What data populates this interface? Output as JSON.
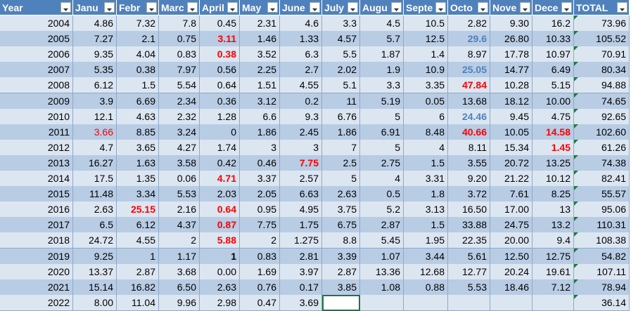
{
  "table": {
    "header": [
      "Year",
      "Janu",
      "Febr",
      "Marc",
      "April",
      "May",
      "June",
      "July",
      "Augu",
      "Septe",
      "Octo",
      "Nove",
      "Dece",
      "TOTAL"
    ],
    "rows": [
      [
        "2004",
        "4.86",
        "7.32",
        "7.8",
        "0.45",
        "2.31",
        "4.6",
        "3.3",
        "4.5",
        "10.5",
        "2.82",
        "9.30",
        "16.2",
        "73.96"
      ],
      [
        "2005",
        "7.27",
        "2.1",
        "0.75",
        "3.11",
        "1.46",
        "1.33",
        "4.57",
        "5.7",
        "12.5",
        "29.6",
        "26.80",
        "10.33",
        "105.52"
      ],
      [
        "2006",
        "9.35",
        "4.04",
        "0.83",
        "0.38",
        "3.52",
        "6.3",
        "5.5",
        "1.87",
        "1.4",
        "8.97",
        "17.78",
        "10.97",
        "70.91"
      ],
      [
        "2007",
        "5.35",
        "0.38",
        "7.97",
        "0.56",
        "2.25",
        "2.7",
        "2.02",
        "1.9",
        "10.9",
        "25.05",
        "14.77",
        "6.49",
        "80.34"
      ],
      [
        "2008",
        "6.12",
        "1.5",
        "5.54",
        "0.64",
        "1.51",
        "4.55",
        "5.1",
        "3.3",
        "3.35",
        "47.84",
        "10.28",
        "5.15",
        "94.88"
      ],
      [
        "2009",
        "3.9",
        "6.69",
        "2.34",
        "0.36",
        "3.12",
        "0.2",
        "11",
        "5.19",
        "0.05",
        "13.68",
        "18.12",
        "10.00",
        "74.65"
      ],
      [
        "2010",
        "12.1",
        "4.63",
        "2.32",
        "1.28",
        "6.6",
        "9.3",
        "6.76",
        "5",
        "6",
        "24.46",
        "9.45",
        "4.75",
        "92.65"
      ],
      [
        "2011",
        "3.66",
        "8.85",
        "3.24",
        "0",
        "1.86",
        "2.45",
        "1.86",
        "6.91",
        "8.48",
        "40.66",
        "10.05",
        "14.58",
        "102.60"
      ],
      [
        "2012",
        "4.7",
        "3.65",
        "4.27",
        "1.74",
        "3",
        "3",
        "7",
        "5",
        "4",
        "8.11",
        "15.34",
        "1.45",
        "61.26"
      ],
      [
        "2013",
        "16.27",
        "1.63",
        "3.58",
        "0.42",
        "0.46",
        "7.75",
        "2.5",
        "2.75",
        "1.5",
        "3.55",
        "20.72",
        "13.25",
        "74.38"
      ],
      [
        "2014",
        "17.5",
        "1.35",
        "0.06",
        "4.71",
        "3.37",
        "2.57",
        "5",
        "4",
        "3.31",
        "9.20",
        "21.22",
        "10.12",
        "82.41"
      ],
      [
        "2015",
        "11.48",
        "3.34",
        "5.53",
        "2.03",
        "2.05",
        "6.63",
        "2.63",
        "0.5",
        "1.8",
        "3.72",
        "7.61",
        "8.25",
        "55.57"
      ],
      [
        "2016",
        "2.63",
        "25.15",
        "2.16",
        "0.64",
        "0.95",
        "4.95",
        "3.75",
        "5.2",
        "3.13",
        "16.50",
        "17.00",
        "13",
        "95.06"
      ],
      [
        "2017",
        "6.5",
        "6.12",
        "4.37",
        "0.87",
        "7.75",
        "1.75",
        "6.75",
        "2.87",
        "1.5",
        "33.88",
        "24.75",
        "13.2",
        "110.31"
      ],
      [
        "2018",
        "24.72",
        "4.55",
        "2",
        "5.88",
        "2",
        "1.275",
        "8.8",
        "5.45",
        "1.95",
        "22.35",
        "20.00",
        "9.4",
        "108.38"
      ],
      [
        "2019",
        "9.25",
        "1",
        "1.17",
        "1",
        "0.83",
        "2.81",
        "3.39",
        "1.07",
        "3.44",
        "5.61",
        "12.50",
        "12.75",
        "54.82"
      ],
      [
        "2020",
        "13.37",
        "2.87",
        "3.68",
        "0.00",
        "1.69",
        "3.97",
        "2.87",
        "13.36",
        "12.68",
        "12.77",
        "20.24",
        "19.61",
        "107.11"
      ],
      [
        "2021",
        "15.14",
        "16.82",
        "6.50",
        "2.63",
        "0.76",
        "0.17",
        "3.85",
        "1.08",
        "0.88",
        "5.53",
        "18.46",
        "7.12",
        "78.94"
      ],
      [
        "2022",
        "8.00",
        "11.04",
        "9.96",
        "2.98",
        "0.47",
        "3.69",
        null,
        null,
        null,
        null,
        null,
        null,
        "36.14"
      ]
    ]
  }
}
